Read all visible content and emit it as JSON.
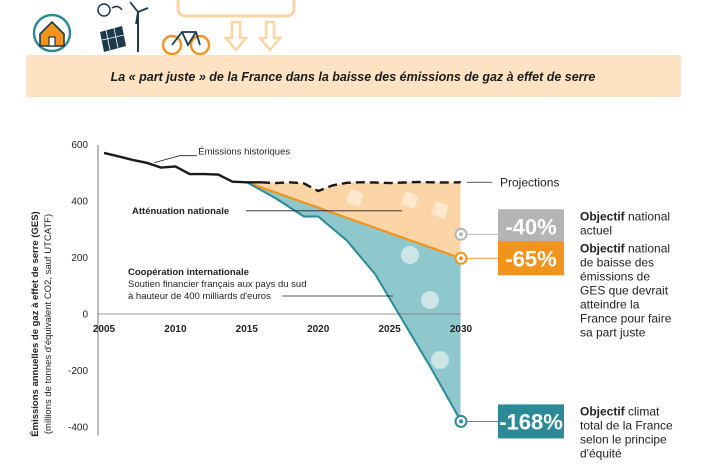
{
  "header": {
    "title": "La « part juste » de la France dans la baisse des émissions de gaz à effet de serre"
  },
  "chart_data": {
    "type": "area",
    "title": "La « part juste » de la France dans la baisse des émissions de gaz à effet de serre",
    "ylabel": "Émissions annuelles de gaz à effet de serre (GES)",
    "ylabel_sub": "(millions de tonnes d'équivalent CO2, sauf UTCATF)",
    "xlabel": "",
    "x_ticks": [
      2005,
      2010,
      2015,
      2020,
      2025,
      2030
    ],
    "y_ticks": [
      -400,
      -200,
      0,
      200,
      400,
      600
    ],
    "ylim": [
      -430,
      640
    ],
    "xlim": [
      2005,
      2030
    ],
    "grid": false,
    "series": [
      {
        "key": "historique",
        "x": [
          2005,
          2006,
          2007,
          2008,
          2009,
          2010,
          2011,
          2012,
          2013,
          2014,
          2015,
          2016
        ],
        "y": [
          570,
          558,
          545,
          535,
          518,
          522,
          495,
          495,
          493,
          468,
          466,
          466
        ]
      },
      {
        "key": "projections",
        "x": [
          2016,
          2017,
          2018,
          2019,
          2020,
          2021,
          2022,
          2023,
          2024,
          2025,
          2026,
          2027,
          2028,
          2029,
          2030
        ],
        "y": [
          466,
          463,
          466,
          462,
          435,
          455,
          464,
          466,
          465,
          463,
          465,
          467,
          466,
          465,
          466
        ]
      },
      {
        "key": "attenuation",
        "x": [
          2015,
          2030
        ],
        "y": [
          466,
          197
        ]
      },
      {
        "key": "cooperation",
        "x": [
          2015,
          2017,
          2019,
          2020,
          2022,
          2024,
          2026,
          2028,
          2030
        ],
        "y": [
          466,
          410,
          345,
          345,
          260,
          140,
          -30,
          -200,
          -380
        ]
      }
    ],
    "annotations": {
      "historiques": "Émissions historiques",
      "projections": "Projections",
      "attenuation": "Atténuation nationale",
      "cooperation": "Coopération internationale",
      "cooperation_sub1": "Soutien financier français aux pays du sud",
      "cooperation_sub2": "à hauteur de 400 milliards d'euros"
    },
    "markers": [
      {
        "value": "-40%",
        "y": 282,
        "bold": "Objectif",
        "lines": [
          "Objectif national",
          "actuel"
        ],
        "color": "#b4b4b4"
      },
      {
        "value": "-65%",
        "y": 197,
        "bold": "Objectif",
        "lines": [
          "Objectif national",
          "de baisse des",
          "émissions de",
          "GES que devrait",
          "atteindre la",
          "France pour faire",
          "sa part juste"
        ],
        "color": "#f0941e"
      },
      {
        "value": "-168%",
        "y": -380,
        "bold": "Objectif",
        "lines": [
          "Objectif climat",
          "total de la France",
          "selon le principe",
          "d'équité"
        ],
        "color": "#2b8a95"
      }
    ],
    "colors": {
      "orange_fill": "#fbd5a6",
      "teal_fill": "#8ec7cc",
      "orange_line": "#f0941e",
      "teal_line": "#2b8a95",
      "header_band": "#fde2c4",
      "icon_dark": "#1c3a4a",
      "icon_orange": "#f0941e",
      "icon_teal": "#2b8a95"
    }
  }
}
